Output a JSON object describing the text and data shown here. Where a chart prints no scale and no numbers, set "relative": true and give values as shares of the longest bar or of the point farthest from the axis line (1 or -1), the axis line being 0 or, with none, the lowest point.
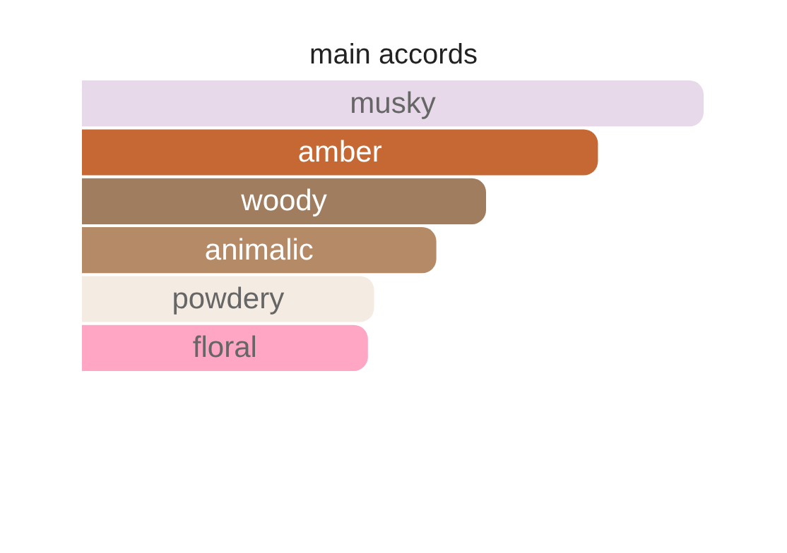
{
  "chart_data": {
    "type": "bar",
    "orientation": "horizontal",
    "relative": true,
    "title": "main accords",
    "categories": [
      "musky",
      "amber",
      "woody",
      "animalic",
      "powdery",
      "floral"
    ],
    "values": [
      1,
      0.83,
      0.65,
      0.57,
      0.47,
      0.46
    ],
    "colors": [
      "#e8d9ea",
      "#c66833",
      "#a07d5e",
      "#b48a67",
      "#f4ece2",
      "#fea6c3"
    ]
  }
}
